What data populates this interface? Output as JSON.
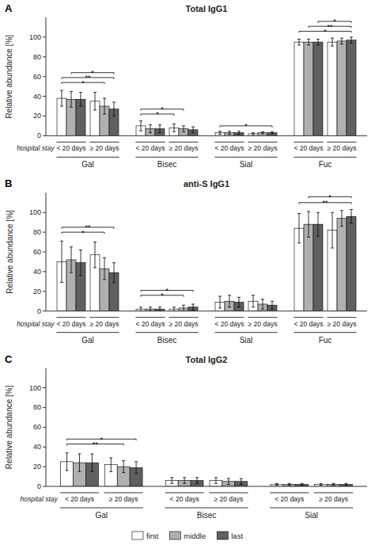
{
  "chart_data": [
    {
      "type": "bar",
      "panel_label": "A",
      "title": "Total IgG1",
      "ylabel": "Relative abundance [%]",
      "xlabel": "hospital stay",
      "groups": [
        "Gal",
        "Bisec",
        "Sial",
        "Fuc"
      ],
      "categories": [
        "< 20 days",
        "≥ 20 days",
        "< 20 days",
        "≥ 20 days",
        "< 20 days",
        "≥ 20 days",
        "< 20 days",
        "≥ 20 days"
      ],
      "series": [
        {
          "name": "first",
          "color": "#ffffff",
          "values": [
            38,
            35,
            10,
            8,
            3,
            2,
            95,
            95
          ],
          "errors": [
            8,
            9,
            5,
            4,
            1.5,
            1,
            3,
            4
          ]
        },
        {
          "name": "middle",
          "color": "#b0b0b0",
          "values": [
            37,
            30,
            7,
            7,
            3,
            3,
            95,
            96
          ],
          "errors": [
            8,
            8,
            4,
            3,
            1.5,
            1,
            3,
            3
          ]
        },
        {
          "name": "last",
          "color": "#606060",
          "values": [
            37,
            27,
            7,
            6,
            3,
            3,
            95,
            97
          ],
          "errors": [
            7,
            7,
            4,
            3,
            1.5,
            1,
            3,
            3
          ]
        }
      ],
      "ylim": [
        0,
        120
      ],
      "yticks": [
        0,
        20,
        40,
        60,
        80,
        100
      ],
      "grid": false,
      "legend": "bottom",
      "annotations": [
        {
          "text": "*",
          "y": 54,
          "from": {
            "group": "Gal",
            "category": "< 20 days",
            "series": "first"
          },
          "to": {
            "group": "Gal",
            "category": "≥ 20 days",
            "series": "middle"
          }
        },
        {
          "text": "**",
          "y": 59,
          "from": {
            "group": "Gal",
            "category": "< 20 days",
            "series": "first"
          },
          "to": {
            "group": "Gal",
            "category": "≥ 20 days",
            "series": "last"
          }
        },
        {
          "text": "*",
          "y": 64,
          "from": {
            "group": "Gal",
            "category": "< 20 days",
            "series": "middle"
          },
          "to": {
            "group": "Gal",
            "category": "≥ 20 days",
            "series": "last"
          }
        },
        {
          "text": "*",
          "y": 22,
          "from": {
            "group": "Bisec",
            "category": "< 20 days",
            "series": "first"
          },
          "to": {
            "group": "Bisec",
            "category": "≥ 20 days",
            "series": "first"
          }
        },
        {
          "text": "*",
          "y": 27,
          "from": {
            "group": "Bisec",
            "category": "< 20 days",
            "series": "first"
          },
          "to": {
            "group": "Bisec",
            "category": "≥ 20 days",
            "series": "middle"
          }
        },
        {
          "text": "*",
          "y": 10,
          "from": {
            "group": "Sial",
            "category": "< 20 days",
            "series": "first"
          },
          "to": {
            "group": "Sial",
            "category": "≥ 20 days",
            "series": "last"
          }
        },
        {
          "text": "*",
          "y": 106,
          "from": {
            "group": "Fuc",
            "category": "< 20 days",
            "series": "first"
          },
          "to": {
            "group": "Fuc",
            "category": "≥ 20 days",
            "series": "last"
          }
        },
        {
          "text": "**",
          "y": 111,
          "from": {
            "group": "Fuc",
            "category": "< 20 days",
            "series": "middle"
          },
          "to": {
            "group": "Fuc",
            "category": "≥ 20 days",
            "series": "last"
          }
        },
        {
          "text": "*",
          "y": 116,
          "from": {
            "group": "Fuc",
            "category": "< 20 days",
            "series": "last"
          },
          "to": {
            "group": "Fuc",
            "category": "≥ 20 days",
            "series": "last"
          }
        }
      ]
    },
    {
      "type": "bar",
      "panel_label": "B",
      "title": "anti-S IgG1",
      "ylabel": "Relative abundance [%]",
      "xlabel": "hospital stay",
      "groups": [
        "Gal",
        "Bisec",
        "Sial",
        "Fuc"
      ],
      "categories": [
        "< 20 days",
        "≥ 20 days",
        "< 20 days",
        "≥ 20 days",
        "< 20 days",
        "≥ 20 days",
        "< 20 days",
        "≥ 20 days"
      ],
      "series": [
        {
          "name": "first",
          "color": "#ffffff",
          "values": [
            50,
            57,
            2,
            2,
            9,
            10,
            84,
            82
          ],
          "errors": [
            21,
            13,
            2,
            2,
            6,
            6,
            15,
            18
          ]
        },
        {
          "name": "middle",
          "color": "#b0b0b0",
          "values": [
            52,
            43,
            2,
            3,
            10,
            7,
            88,
            94
          ],
          "errors": [
            13,
            11,
            2,
            3,
            6,
            5,
            13,
            8
          ]
        },
        {
          "name": "last",
          "color": "#606060",
          "values": [
            49,
            39,
            2,
            4,
            9,
            6,
            88,
            96
          ],
          "errors": [
            13,
            10,
            2,
            3,
            5,
            4,
            12,
            7
          ]
        }
      ],
      "ylim": [
        0,
        120
      ],
      "yticks": [
        0,
        20,
        40,
        60,
        80,
        100
      ],
      "grid": false,
      "annotations": [
        {
          "text": "*",
          "y": 80,
          "from": {
            "group": "Gal",
            "category": "< 20 days",
            "series": "first"
          },
          "to": {
            "group": "Gal",
            "category": "≥ 20 days",
            "series": "middle"
          }
        },
        {
          "text": "**",
          "y": 85,
          "from": {
            "group": "Gal",
            "category": "< 20 days",
            "series": "first"
          },
          "to": {
            "group": "Gal",
            "category": "≥ 20 days",
            "series": "last"
          }
        },
        {
          "text": "*",
          "y": 16,
          "from": {
            "group": "Bisec",
            "category": "< 20 days",
            "series": "first"
          },
          "to": {
            "group": "Bisec",
            "category": "≥ 20 days",
            "series": "middle"
          }
        },
        {
          "text": "*",
          "y": 21,
          "from": {
            "group": "Bisec",
            "category": "< 20 days",
            "series": "first"
          },
          "to": {
            "group": "Bisec",
            "category": "≥ 20 days",
            "series": "last"
          }
        },
        {
          "text": "**",
          "y": 110,
          "from": {
            "group": "Fuc",
            "category": "< 20 days",
            "series": "first"
          },
          "to": {
            "group": "Fuc",
            "category": "≥ 20 days",
            "series": "last"
          }
        },
        {
          "text": "*",
          "y": 116,
          "from": {
            "group": "Fuc",
            "category": "< 20 days",
            "series": "middle"
          },
          "to": {
            "group": "Fuc",
            "category": "≥ 20 days",
            "series": "last"
          }
        }
      ]
    },
    {
      "type": "bar",
      "panel_label": "C",
      "title": "Total IgG2",
      "ylabel": "Relative abundance [%]",
      "xlabel": "hospital stay",
      "groups": [
        "Gal",
        "Bisec",
        "Sial"
      ],
      "categories": [
        "< 20 days",
        "≥ 20 days",
        "< 20 days",
        "≥ 20 days",
        "< 20 days",
        "≥ 20 days"
      ],
      "series": [
        {
          "name": "first",
          "color": "#ffffff",
          "values": [
            25,
            22,
            6,
            6,
            2,
            2
          ],
          "errors": [
            9,
            7,
            3,
            3,
            1,
            1
          ]
        },
        {
          "name": "middle",
          "color": "#b0b0b0",
          "values": [
            24,
            20,
            6,
            5,
            2,
            2
          ],
          "errors": [
            9,
            6,
            3,
            3,
            1,
            1
          ]
        },
        {
          "name": "last",
          "color": "#606060",
          "values": [
            24,
            19,
            6,
            5,
            2,
            2
          ],
          "errors": [
            9,
            6,
            3,
            3,
            1,
            1
          ]
        }
      ],
      "ylim": [
        0,
        120
      ],
      "yticks": [
        0,
        20,
        40,
        60,
        80,
        100
      ],
      "grid": false,
      "annotations": [
        {
          "text": "**",
          "y": 43,
          "from": {
            "group": "Gal",
            "category": "< 20 days",
            "series": "first"
          },
          "to": {
            "group": "Gal",
            "category": "≥ 20 days",
            "series": "middle"
          }
        },
        {
          "text": "*",
          "y": 48,
          "from": {
            "group": "Gal",
            "category": "< 20 days",
            "series": "first"
          },
          "to": {
            "group": "Gal",
            "category": "≥ 20 days",
            "series": "last"
          }
        }
      ]
    }
  ]
}
